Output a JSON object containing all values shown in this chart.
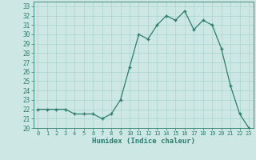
{
  "x": [
    0,
    1,
    2,
    3,
    4,
    5,
    6,
    7,
    8,
    9,
    10,
    11,
    12,
    13,
    14,
    15,
    16,
    17,
    18,
    19,
    20,
    21,
    22,
    23
  ],
  "y": [
    22,
    22,
    22,
    22,
    21.5,
    21.5,
    21.5,
    21,
    21.5,
    23,
    26.5,
    30,
    29.5,
    31,
    32,
    31.5,
    32.5,
    30.5,
    31.5,
    31,
    28.5,
    24.5,
    21.5,
    20
  ],
  "xlabel": "Humidex (Indice chaleur)",
  "xlim": [
    -0.5,
    23.5
  ],
  "ylim": [
    20,
    33.5
  ],
  "yticks": [
    20,
    21,
    22,
    23,
    24,
    25,
    26,
    27,
    28,
    29,
    30,
    31,
    32,
    33
  ],
  "xticks": [
    0,
    1,
    2,
    3,
    4,
    5,
    6,
    7,
    8,
    9,
    10,
    11,
    12,
    13,
    14,
    15,
    16,
    17,
    18,
    19,
    20,
    21,
    22,
    23
  ],
  "line_color": "#2e7d6e",
  "bg_color": "#cde8e4",
  "grid_color": "#a8d4cf",
  "label_color": "#2e7d6e"
}
